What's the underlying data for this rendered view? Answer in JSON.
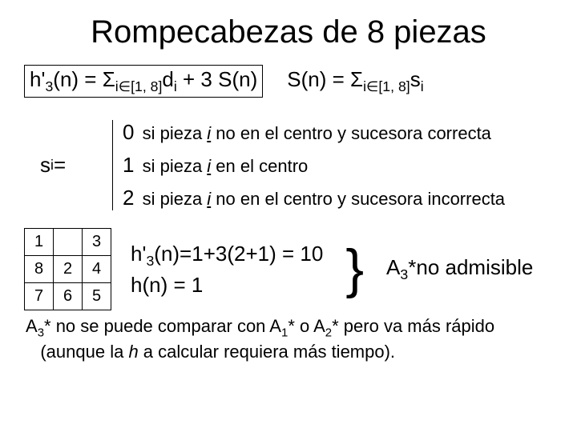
{
  "title": "Rompecabezas de 8 piezas",
  "formula_h3": "h'₃(n) = Σᵢ∈[1, 8]dᵢ + 3 S(n)",
  "formula_sn": "S(n) = Σᵢ∈[1, 8]sᵢ",
  "si_label": "sᵢ=",
  "cases": {
    "c0_num": "0",
    "c0_text": " si pieza i no en el centro y sucesora correcta",
    "c1_num": "1",
    "c1_text": " si pieza i en el centro",
    "c2_num": "2",
    "c2_text": " si pieza i no en el centro y sucesora incorrecta"
  },
  "puzzle": {
    "r0c0": "1",
    "r0c1": "",
    "r0c2": "3",
    "r1c0": "8",
    "r1c1": "2",
    "r1c2": "4",
    "r2c0": "7",
    "r2c1": "6",
    "r2c2": "5"
  },
  "eq_line1": "h'₃(n)=1+3(2+1) = 10",
  "eq_line2": "h(n) = 1",
  "brace": "}",
  "admissible": "A₃*no admisible",
  "footnote_l1": "A₃* no se puede comparar con A₁* o A₂* pero va más rápido",
  "footnote_l2": "(aunque la h a calcular requiera más tiempo).",
  "colors": {
    "text": "#000000",
    "bg": "#ffffff",
    "border": "#000000"
  }
}
